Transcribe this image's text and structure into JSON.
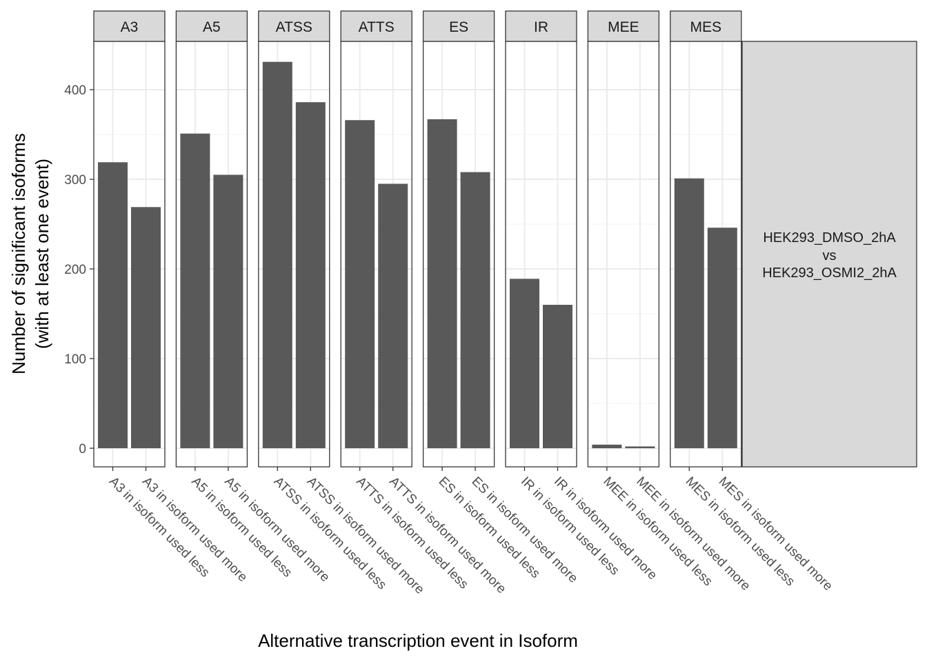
{
  "chart_data": {
    "type": "bar",
    "xlabel": "Alternative transcription event in Isoform",
    "ylabel_lines": [
      "Number of significant isoforms",
      "(with at least one event)"
    ],
    "ylim": [
      0,
      450
    ],
    "yticks": [
      0,
      100,
      200,
      300,
      400
    ],
    "grid": true,
    "facet_strip_label_lines": [
      "HEK293_DMSO_2hA",
      "vs",
      "HEK293_OSMI2_2hA"
    ],
    "facets": [
      {
        "name": "A3",
        "categories": [
          "A3 in isoform used less",
          "A3 in isoform used more"
        ],
        "values": [
          319,
          269
        ]
      },
      {
        "name": "A5",
        "categories": [
          "A5 in isoform used less",
          "A5 in isoform used more"
        ],
        "values": [
          351,
          305
        ]
      },
      {
        "name": "ATSS",
        "categories": [
          "ATSS in isoform used less",
          "ATSS in isoform used more"
        ],
        "values": [
          431,
          386
        ]
      },
      {
        "name": "ATTS",
        "categories": [
          "ATTS in isoform used less",
          "ATTS in isoform used more"
        ],
        "values": [
          366,
          295
        ]
      },
      {
        "name": "ES",
        "categories": [
          "ES in isoform used less",
          "ES in isoform used more"
        ],
        "values": [
          367,
          308
        ]
      },
      {
        "name": "IR",
        "categories": [
          "IR in isoform used less",
          "IR in isoform used more"
        ],
        "values": [
          189,
          160
        ]
      },
      {
        "name": "MEE",
        "categories": [
          "MEE in isoform used less",
          "MEE in isoform used more"
        ],
        "values": [
          4,
          2
        ]
      },
      {
        "name": "MES",
        "categories": [
          "MES in isoform used less",
          "MES in isoform used more"
        ],
        "values": [
          301,
          246
        ]
      }
    ],
    "colors": {
      "bar": "#595959",
      "strip": "#d9d9d9",
      "grid_major": "#ebebeb",
      "grid_minor": "#f5f5f5",
      "border": "#333333"
    }
  }
}
